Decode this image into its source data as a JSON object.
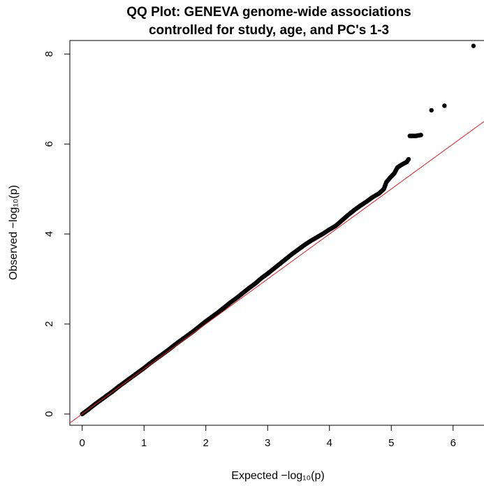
{
  "chart_data": {
    "type": "scatter",
    "title_lines": [
      "QQ Plot: GENEVA genome-wide associations",
      "controlled for study, age, and PC's 1-3"
    ],
    "xlabel": "Expected  −log₁₀(p)",
    "ylabel": "Observed  −log₁₀(p)",
    "xlim": [
      -0.2,
      6.5
    ],
    "ylim": [
      -0.25,
      8.3
    ],
    "x_ticks": [
      0,
      1,
      2,
      3,
      4,
      5,
      6
    ],
    "y_ticks": [
      0,
      2,
      4,
      6,
      8
    ],
    "grid": false,
    "reference_line": {
      "slope": 1,
      "intercept": 0,
      "color": "#e31a1c"
    },
    "point_color": "#000000",
    "series": [
      {
        "values": [
          [
            0.0,
            0.0
          ],
          [
            0.1,
            0.1
          ],
          [
            0.2,
            0.21
          ],
          [
            0.3,
            0.31
          ],
          [
            0.4,
            0.41
          ],
          [
            0.5,
            0.51
          ],
          [
            0.6,
            0.62
          ],
          [
            0.7,
            0.72
          ],
          [
            0.8,
            0.82
          ],
          [
            0.9,
            0.92
          ],
          [
            1.0,
            1.02
          ],
          [
            1.1,
            1.13
          ],
          [
            1.2,
            1.23
          ],
          [
            1.3,
            1.33
          ],
          [
            1.4,
            1.43
          ],
          [
            1.5,
            1.54
          ],
          [
            1.6,
            1.64
          ],
          [
            1.7,
            1.74
          ],
          [
            1.8,
            1.84
          ],
          [
            1.9,
            1.95
          ],
          [
            2.0,
            2.06
          ],
          [
            2.1,
            2.16
          ],
          [
            2.2,
            2.26
          ],
          [
            2.3,
            2.37
          ],
          [
            2.4,
            2.48
          ],
          [
            2.5,
            2.58
          ],
          [
            2.6,
            2.69
          ],
          [
            2.7,
            2.8
          ],
          [
            2.8,
            2.9
          ],
          [
            2.9,
            3.02
          ],
          [
            3.0,
            3.12
          ],
          [
            3.1,
            3.23
          ],
          [
            3.2,
            3.34
          ],
          [
            3.3,
            3.45
          ],
          [
            3.4,
            3.56
          ],
          [
            3.5,
            3.66
          ],
          [
            3.6,
            3.76
          ],
          [
            3.7,
            3.85
          ],
          [
            3.8,
            3.93
          ],
          [
            3.9,
            4.01
          ],
          [
            4.0,
            4.1
          ],
          [
            4.1,
            4.18
          ],
          [
            4.2,
            4.3
          ],
          [
            4.3,
            4.42
          ],
          [
            4.4,
            4.53
          ],
          [
            4.5,
            4.63
          ],
          [
            4.6,
            4.72
          ],
          [
            4.7,
            4.82
          ],
          [
            4.8,
            4.9
          ],
          [
            4.88,
            5.0
          ],
          [
            4.92,
            5.15
          ],
          [
            4.98,
            5.25
          ],
          [
            5.05,
            5.35
          ],
          [
            5.1,
            5.48
          ],
          [
            5.18,
            5.55
          ],
          [
            5.25,
            5.6
          ],
          [
            5.28,
            5.66
          ],
          [
            5.3,
            6.18
          ],
          [
            5.4,
            6.18
          ],
          [
            5.48,
            6.2
          ],
          [
            5.65,
            6.75
          ],
          [
            5.86,
            6.85
          ],
          [
            6.33,
            8.18
          ]
        ]
      }
    ]
  }
}
